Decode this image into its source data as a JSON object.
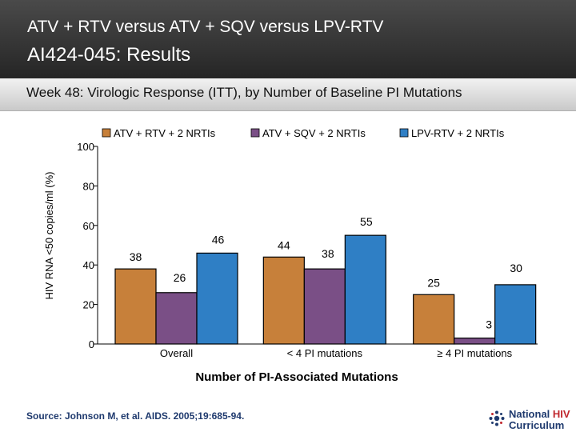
{
  "slide": {
    "title_line1": "ATV + RTV versus ATV + SQV versus LPV-RTV",
    "title_line2": "AI424-045: Results",
    "subtitle": "Week 48: Virologic Response (ITT), by Number of Baseline PI Mutations",
    "source": "Source: Johnson M, et al. AIDS. 2005;19:685-94.",
    "logo": {
      "text_national": "National",
      "text_hiv": "HIV",
      "text_curriculum": "Curriculum"
    }
  },
  "colors": {
    "series": [
      "#c7803a",
      "#7a4f86",
      "#2f7fc5"
    ],
    "grid": "#bfbfbf",
    "plot_bg": "#ffffff"
  },
  "chart_data": {
    "type": "bar",
    "categories": [
      "Overall",
      "< 4 PI mutations",
      "≥ 4 PI mutations"
    ],
    "series": [
      {
        "name": "ATV + RTV + 2 NRTIs",
        "values": [
          38,
          44,
          25
        ]
      },
      {
        "name": "ATV + SQV + 2 NRTIs",
        "values": [
          26,
          38,
          3
        ]
      },
      {
        "name": "LPV-RTV + 2 NRTIs",
        "values": [
          46,
          55,
          30
        ]
      }
    ],
    "title": "",
    "xlabel": "Number of PI-Associated Mutations",
    "ylabel": "HIV RNA <50 copies/ml (%)",
    "ylim": [
      0,
      100
    ],
    "yticks": [
      0,
      20,
      40,
      60,
      80,
      100
    ],
    "legend_position": "top",
    "grid": false
  }
}
